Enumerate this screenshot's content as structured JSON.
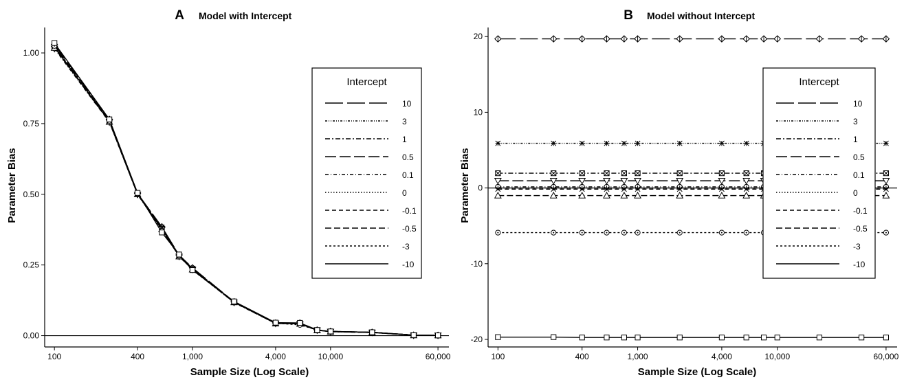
{
  "chart_data": [
    {
      "type": "line",
      "panel_letter": "A",
      "title": "Model with Intercept",
      "xlabel": "Sample Size (Log Scale)",
      "ylabel": "Parameter Bias",
      "x_scale": "log",
      "xlim": [
        85,
        72000
      ],
      "ylim": [
        -0.04,
        1.09
      ],
      "x_ticks": [
        {
          "value": 100,
          "label": "100"
        },
        {
          "value": 400,
          "label": "400"
        },
        {
          "value": 1000,
          "label": "1,000"
        },
        {
          "value": 4000,
          "label": "4,000"
        },
        {
          "value": 10000,
          "label": "10,000"
        },
        {
          "value": 60000,
          "label": "60,000"
        }
      ],
      "y_ticks": [
        {
          "value": 0,
          "label": "0.00"
        },
        {
          "value": 0.25,
          "label": "0.25"
        },
        {
          "value": 0.5,
          "label": "0.50"
        },
        {
          "value": 0.75,
          "label": "0.75"
        },
        {
          "value": 1.0,
          "label": "1.00"
        }
      ],
      "reference_line_y": 0,
      "grid": false,
      "legend": {
        "title": "Intercept",
        "placement": "right"
      },
      "x": [
        100,
        250,
        400,
        600,
        800,
        1000,
        2000,
        4000,
        6000,
        8000,
        10000,
        20000,
        40000,
        60000
      ],
      "series": [
        {
          "name": "10",
          "marker": "diamond",
          "values": [
            1.03,
            0.765,
            0.503,
            0.385,
            0.285,
            0.24,
            0.12,
            0.045,
            0.045,
            0.02,
            0.015,
            0.012,
            0.002,
            0.001
          ]
        },
        {
          "name": "3",
          "marker": "circle",
          "values": [
            1.02,
            0.76,
            0.5,
            0.38,
            0.282,
            0.236,
            0.118,
            0.044,
            0.043,
            0.02,
            0.015,
            0.012,
            0.002,
            0.001
          ]
        },
        {
          "name": "1",
          "marker": "star",
          "values": [
            1.025,
            0.762,
            0.502,
            0.384,
            0.284,
            0.238,
            0.12,
            0.045,
            0.044,
            0.02,
            0.015,
            0.012,
            0.002,
            0.001
          ]
        },
        {
          "name": "0.5",
          "marker": "square-x",
          "values": [
            1.02,
            0.758,
            0.5,
            0.378,
            0.28,
            0.235,
            0.118,
            0.043,
            0.042,
            0.019,
            0.014,
            0.011,
            0.002,
            0.001
          ]
        },
        {
          "name": "0.1",
          "marker": "triangle-down",
          "values": [
            1.015,
            0.755,
            0.499,
            0.375,
            0.28,
            0.234,
            0.117,
            0.043,
            0.042,
            0.019,
            0.014,
            0.011,
            0.001,
            0.001
          ]
        },
        {
          "name": "0",
          "marker": "plus",
          "values": [
            1.02,
            0.757,
            0.5,
            0.378,
            0.281,
            0.235,
            0.118,
            0.044,
            0.043,
            0.019,
            0.015,
            0.012,
            0.002,
            0.001
          ]
        },
        {
          "name": "-0.1",
          "marker": "triangle",
          "values": [
            1.018,
            0.756,
            0.5,
            0.376,
            0.28,
            0.234,
            0.118,
            0.043,
            0.042,
            0.019,
            0.014,
            0.011,
            0.001,
            0.001
          ]
        },
        {
          "name": "-0.5",
          "marker": "x",
          "values": [
            1.022,
            0.758,
            0.501,
            0.38,
            0.282,
            0.236,
            0.119,
            0.044,
            0.043,
            0.019,
            0.015,
            0.012,
            0.002,
            0.001
          ]
        },
        {
          "name": "-3",
          "marker": "circle-dot",
          "values": [
            1.025,
            0.76,
            0.502,
            0.37,
            0.283,
            0.232,
            0.118,
            0.044,
            0.038,
            0.02,
            0.015,
            0.012,
            0.002,
            0.001
          ]
        },
        {
          "name": "-10",
          "marker": "square",
          "values": [
            1.035,
            0.765,
            0.505,
            0.365,
            0.287,
            0.232,
            0.121,
            0.046,
            0.045,
            0.02,
            0.015,
            0.012,
            0.002,
            0.001
          ]
        }
      ]
    },
    {
      "type": "line",
      "panel_letter": "B",
      "title": "Model without Intercept",
      "xlabel": "Sample Size (Log Scale)",
      "ylabel": "Parameter Bias",
      "x_scale": "log",
      "xlim": [
        85,
        72000
      ],
      "ylim": [
        -21,
        21.2
      ],
      "x_ticks": [
        {
          "value": 100,
          "label": "100"
        },
        {
          "value": 400,
          "label": "400"
        },
        {
          "value": 1000,
          "label": "1,000"
        },
        {
          "value": 4000,
          "label": "4,000"
        },
        {
          "value": 10000,
          "label": "10,000"
        },
        {
          "value": 60000,
          "label": "60,000"
        }
      ],
      "y_ticks": [
        {
          "value": -20,
          "label": "-20"
        },
        {
          "value": -10,
          "label": "-10"
        },
        {
          "value": 0,
          "label": "0"
        },
        {
          "value": 10,
          "label": "10"
        },
        {
          "value": 20,
          "label": "20"
        }
      ],
      "reference_line_y": 0,
      "grid": false,
      "legend": {
        "title": "Intercept",
        "placement": "right"
      },
      "x": [
        100,
        250,
        400,
        600,
        800,
        1000,
        2000,
        4000,
        6000,
        8000,
        10000,
        20000,
        40000,
        60000
      ],
      "series": [
        {
          "name": "10",
          "marker": "diamond",
          "values": [
            19.7,
            19.7,
            19.7,
            19.7,
            19.7,
            19.7,
            19.7,
            19.7,
            19.7,
            19.7,
            19.7,
            19.7,
            19.7,
            19.7
          ]
        },
        {
          "name": "3",
          "marker": "star",
          "values": [
            5.9,
            5.9,
            5.9,
            5.9,
            5.9,
            5.9,
            5.9,
            5.9,
            5.9,
            5.9,
            5.9,
            5.9,
            5.9,
            5.9
          ]
        },
        {
          "name": "1",
          "marker": "square-x",
          "values": [
            1.95,
            1.95,
            1.95,
            1.95,
            1.95,
            1.95,
            1.95,
            1.95,
            1.95,
            1.95,
            1.95,
            1.95,
            1.95,
            1.95
          ]
        },
        {
          "name": "0.5",
          "marker": "triangle-down",
          "values": [
            0.95,
            0.95,
            0.95,
            0.95,
            0.95,
            0.95,
            0.95,
            0.95,
            0.95,
            0.95,
            0.95,
            0.95,
            0.95,
            0.95
          ]
        },
        {
          "name": "0.1",
          "marker": "circle",
          "values": [
            0.15,
            0.15,
            0.15,
            0.15,
            0.15,
            0.15,
            0.15,
            0.15,
            0.15,
            0.15,
            0.15,
            0.15,
            0.15,
            0.15
          ]
        },
        {
          "name": "0",
          "marker": "plus",
          "values": [
            0,
            0,
            0,
            0,
            0,
            0,
            0,
            0,
            0,
            0,
            0,
            0,
            0,
            0
          ]
        },
        {
          "name": "-0.1",
          "marker": "x",
          "values": [
            -0.15,
            -0.15,
            -0.15,
            -0.15,
            -0.15,
            -0.15,
            -0.15,
            -0.15,
            -0.15,
            -0.15,
            -0.15,
            -0.15,
            -0.15,
            -0.15
          ]
        },
        {
          "name": "-0.5",
          "marker": "triangle",
          "values": [
            -1.0,
            -1.0,
            -1.0,
            -1.0,
            -1.0,
            -1.0,
            -1.0,
            -1.0,
            -1.0,
            -1.0,
            -1.0,
            -1.0,
            -1.0,
            -1.0
          ]
        },
        {
          "name": "-3",
          "marker": "circle-dot",
          "values": [
            -5.9,
            -5.9,
            -5.9,
            -5.9,
            -5.9,
            -5.9,
            -5.9,
            -5.9,
            -5.9,
            -5.9,
            -5.9,
            -5.9,
            -5.9,
            -5.9
          ]
        },
        {
          "name": "-10",
          "marker": "square",
          "values": [
            -19.7,
            -19.7,
            -19.75,
            -19.75,
            -19.75,
            -19.75,
            -19.75,
            -19.75,
            -19.75,
            -19.75,
            -19.75,
            -19.75,
            -19.75,
            -19.75
          ]
        }
      ]
    }
  ]
}
